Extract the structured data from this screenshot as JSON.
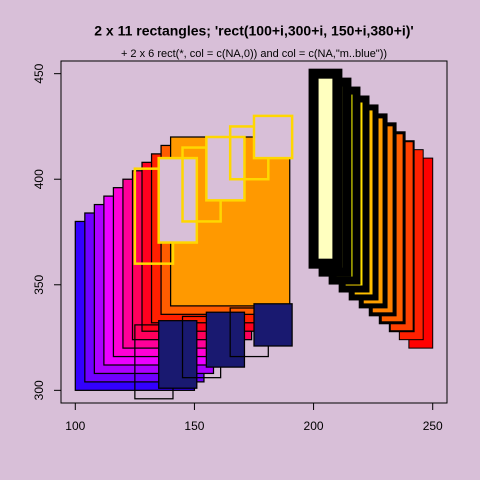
{
  "chart_data": {
    "type": "rect",
    "title": "2 x 11 rectangles; 'rect(100+i,300+i,  150+i,380+i)'",
    "subtitle": "+  2 x 6 rect(*, col = c(NA,0)) and  col = c(NA,\"m..blue\"))",
    "background": "#d8bfd8",
    "xlim": [
      94,
      256
    ],
    "ylim": [
      294,
      456
    ],
    "xticks": [
      100,
      150,
      200,
      250
    ],
    "yticks": [
      300,
      350,
      400,
      450
    ],
    "layers": [
      {
        "xleft": [
          100,
          104,
          108,
          112,
          116,
          120,
          124,
          128,
          132,
          136,
          140
        ],
        "ybottom": [
          300,
          304,
          308,
          312,
          316,
          320,
          324,
          328,
          332,
          336,
          340
        ],
        "xright": [
          150,
          154,
          158,
          162,
          166,
          170,
          174,
          178,
          182,
          186,
          190
        ],
        "ytop": [
          380,
          384,
          388,
          392,
          396,
          400,
          404,
          408,
          412,
          416,
          420
        ],
        "fill": [
          "#3300ff",
          "#7000ff",
          "#ad00ff",
          "#eb00ff",
          "#ff00d6",
          "#ff0099",
          "#ff005c",
          "#ff001f",
          "#ff1f00",
          "#ff5c00",
          "#ff9900"
        ],
        "border": "#000000",
        "lwd": [
          1,
          1,
          1,
          1,
          1,
          1,
          1,
          1,
          1,
          1,
          1
        ]
      },
      {
        "xleft": [
          240,
          236,
          232,
          228,
          224,
          220,
          216,
          212,
          208,
          204,
          200
        ],
        "ybottom": [
          320,
          324,
          328,
          332,
          336,
          340,
          344,
          348,
          352,
          356,
          360
        ],
        "xright": [
          250,
          246,
          242,
          238,
          234,
          230,
          226,
          222,
          218,
          214,
          210
        ],
        "ytop": [
          410,
          414,
          418,
          422,
          426,
          430,
          434,
          438,
          442,
          446,
          450
        ],
        "fill": [
          "#ff0000",
          "#ff2000",
          "#ff4000",
          "#ff6000",
          "#ff8000",
          "#ff9f00",
          "#ffbf00",
          "#ffdf00",
          "#ffff00",
          "#ffff40",
          "#ffffbf"
        ],
        "border": "#000000",
        "lwd": [
          0,
          0.8,
          1.6,
          2.4,
          3.2,
          4,
          4.8,
          5.6,
          6.4,
          7.2,
          8
        ]
      },
      {
        "xleft": [
          125,
          135,
          145,
          155,
          165,
          175
        ],
        "ybottom": [
          360,
          370,
          380,
          390,
          400,
          410
        ],
        "xright": [
          141,
          151,
          161,
          171,
          181,
          191
        ],
        "ytop": [
          405,
          410,
          415,
          420,
          425,
          430
        ],
        "fill": [
          null,
          "#d8bfd8",
          null,
          "#d8bfd8",
          null,
          "#d8bfd8"
        ],
        "border": "#ffd700",
        "lwd": [
          2,
          2,
          2,
          2,
          2,
          2
        ]
      },
      {
        "xleft": [
          125,
          135,
          145,
          155,
          165,
          175
        ],
        "ybottom": [
          296,
          301,
          306,
          311,
          316,
          321
        ],
        "xright": [
          141,
          151,
          161,
          171,
          181,
          191
        ],
        "ytop": [
          331,
          333,
          335,
          337,
          339,
          341
        ],
        "fill": [
          null,
          "#191970",
          null,
          "#191970",
          null,
          "#191970"
        ],
        "border": "#000000",
        "lwd": [
          1,
          1,
          1,
          1,
          1,
          1
        ]
      }
    ]
  }
}
